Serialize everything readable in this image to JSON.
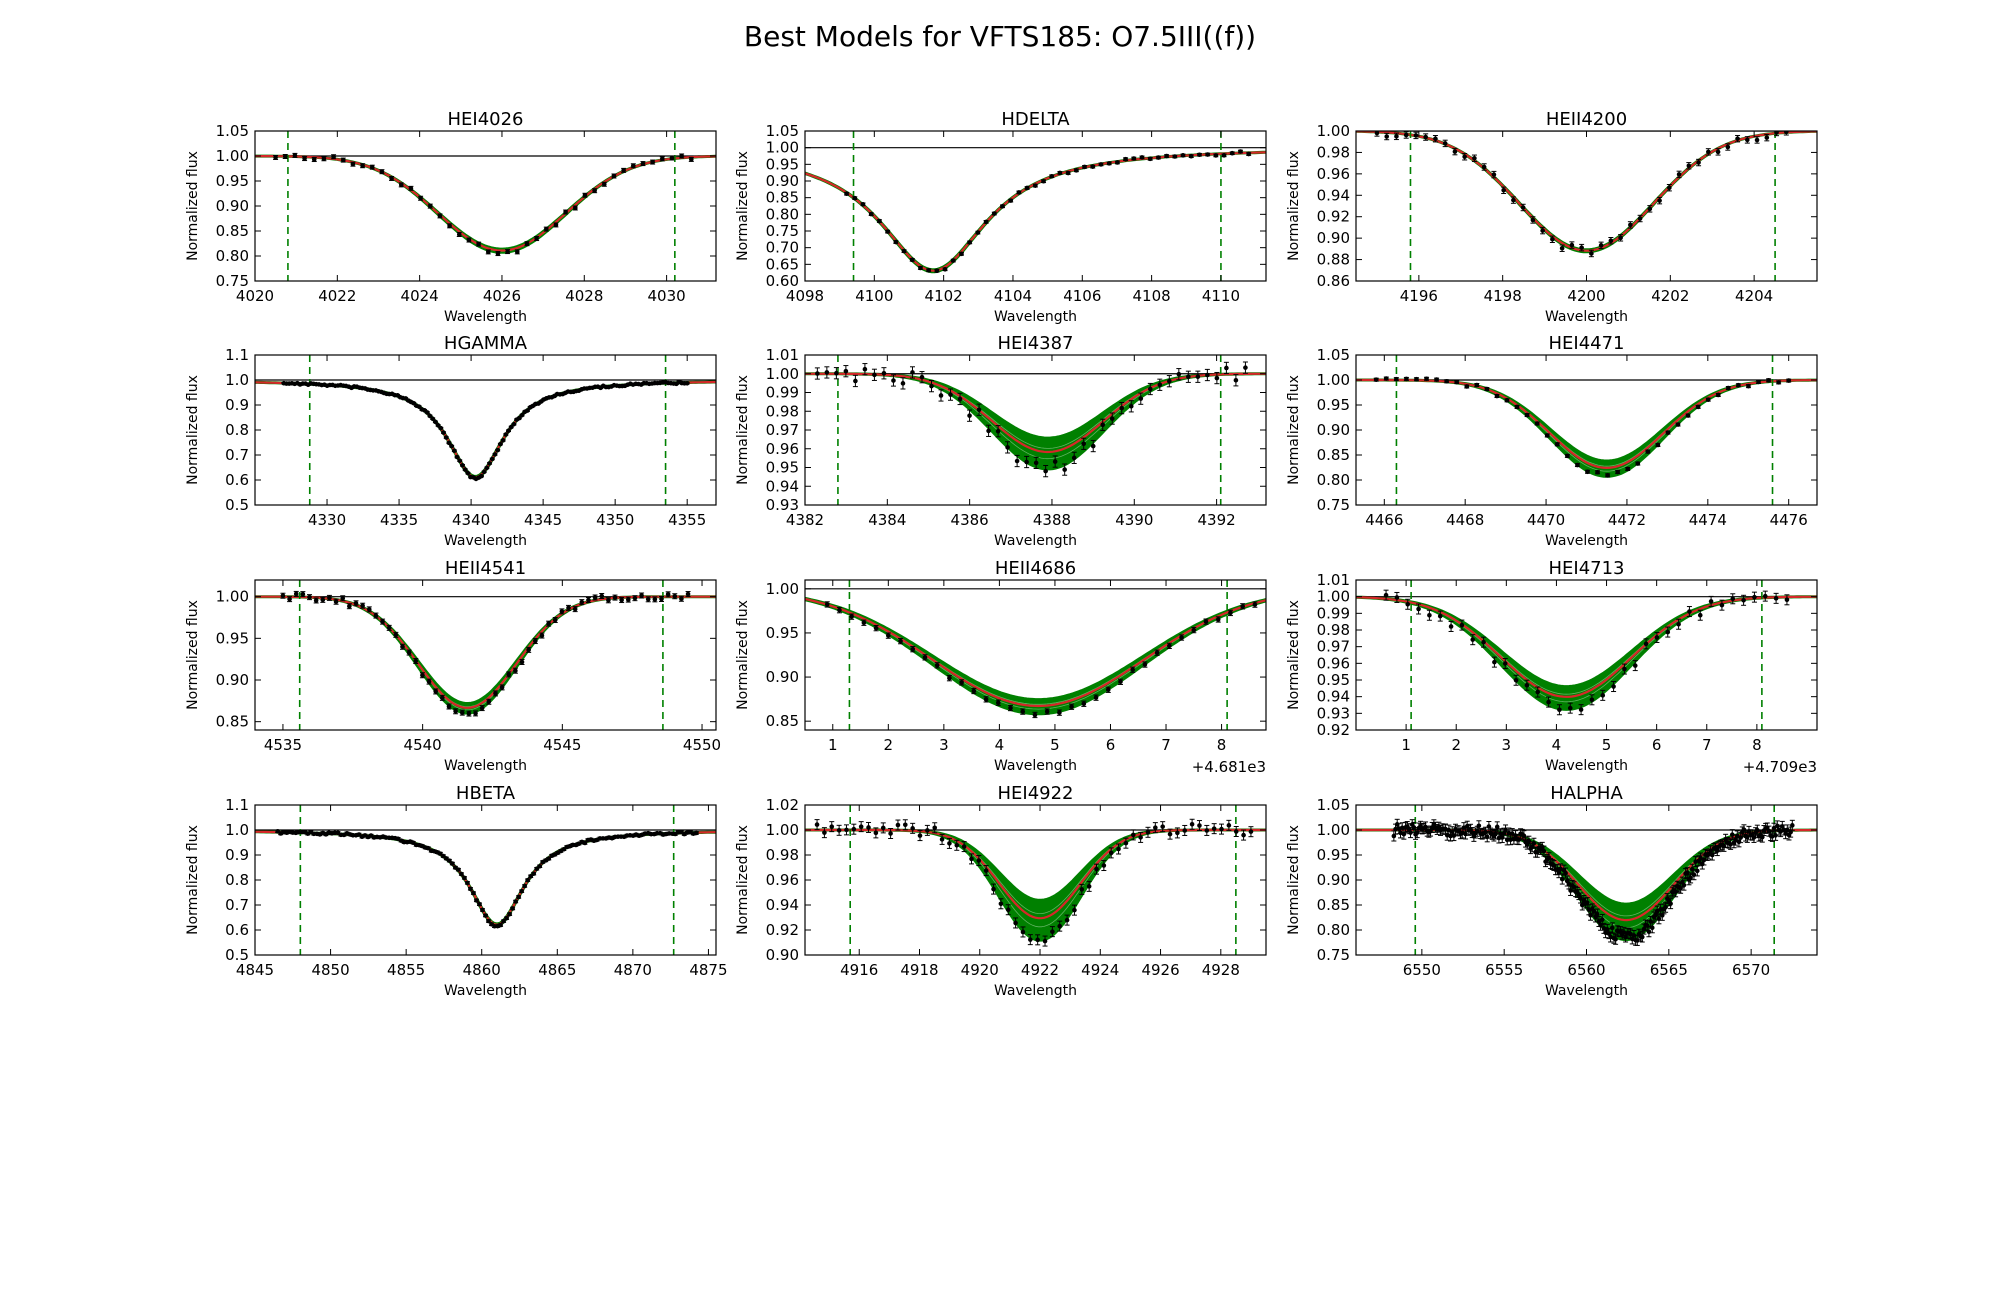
{
  "figure": {
    "title": "Best Models for VFTS185: O7.5III((f))"
  },
  "colors": {
    "data": "#000000",
    "best_model": "#d62728",
    "model_range": "#008000",
    "window": "#008000",
    "continuum": "#000000"
  },
  "chart_data": [
    {
      "type": "line",
      "title": "HEI4026",
      "xlabel": "Wavelength",
      "ylabel": "Normalized flux",
      "xlim": [
        4020,
        4031.2
      ],
      "ylim": [
        0.75,
        1.05
      ],
      "xticks": [
        4020,
        4022,
        4024,
        4026,
        4028,
        4030
      ],
      "xtick_labels": [
        "4020",
        "4022",
        "4024",
        "4026",
        "4028",
        "4030"
      ],
      "yticks": [
        0.75,
        0.8,
        0.85,
        0.9,
        0.95,
        1.0,
        1.05
      ],
      "ytick_labels": [
        "0.75",
        "0.80",
        "0.85",
        "0.90",
        "0.95",
        "1.00",
        "1.05"
      ],
      "offset_label": "",
      "window": [
        4020.8,
        4030.2
      ],
      "line": {
        "center": 4026.0,
        "depth": 0.19,
        "width": 1.55,
        "shape": "gauss",
        "spread": 0.02
      },
      "observed": {
        "x_start": 4020.5,
        "x_end": 4030.6,
        "n": 44,
        "jitter": 0.005,
        "err": 0.004
      }
    },
    {
      "type": "line",
      "title": "HDELTA",
      "xlabel": "Wavelength",
      "ylabel": "Normalized flux",
      "xlim": [
        4098,
        4111.3
      ],
      "ylim": [
        0.6,
        1.05
      ],
      "xticks": [
        4098,
        4100,
        4102,
        4104,
        4106,
        4108,
        4110
      ],
      "xtick_labels": [
        "4098",
        "4100",
        "4102",
        "4104",
        "4106",
        "4108",
        "4110"
      ],
      "yticks": [
        0.6,
        0.65,
        0.7,
        0.75,
        0.8,
        0.85,
        0.9,
        0.95,
        1.0,
        1.05
      ],
      "ytick_labels": [
        "0.60",
        "0.65",
        "0.70",
        "0.75",
        "0.80",
        "0.85",
        "0.90",
        "0.95",
        "1.00",
        "1.05"
      ],
      "offset_label": "",
      "window": [
        4099.4,
        4110.0
      ],
      "line": {
        "center": 4101.7,
        "depth": 0.37,
        "width": 1.9,
        "shape": "lorentz",
        "spread": 0.01
      },
      "observed": {
        "x_start": 4099.2,
        "x_end": 4110.8,
        "n": 50,
        "jitter": 0.005,
        "err": 0.004
      }
    },
    {
      "type": "line",
      "title": "HEII4200",
      "xlabel": "Wavelength",
      "ylabel": "Normalized flux",
      "xlim": [
        4194.5,
        4205.5
      ],
      "ylim": [
        0.86,
        1.0
      ],
      "xticks": [
        4196,
        4198,
        4200,
        4202,
        4204
      ],
      "xtick_labels": [
        "4196",
        "4198",
        "4200",
        "4202",
        "4204"
      ],
      "yticks": [
        0.86,
        0.88,
        0.9,
        0.92,
        0.94,
        0.96,
        0.98,
        1.0
      ],
      "ytick_labels": [
        "0.86",
        "0.88",
        "0.90",
        "0.92",
        "0.94",
        "0.96",
        "0.98",
        "1.00"
      ],
      "offset_label": "",
      "window": [
        4195.8,
        4204.5
      ],
      "line": {
        "center": 4200.0,
        "depth": 0.112,
        "width": 1.6,
        "shape": "gauss",
        "spread": 0.01
      },
      "observed": {
        "x_start": 4195.0,
        "x_end": 4205.0,
        "n": 44,
        "jitter": 0.004,
        "err": 0.003
      }
    },
    {
      "type": "line",
      "title": "HGAMMA",
      "xlabel": "Wavelength",
      "ylabel": "Normalized flux",
      "xlim": [
        4325,
        4357
      ],
      "ylim": [
        0.5,
        1.1
      ],
      "xticks": [
        4330,
        4335,
        4340,
        4345,
        4350,
        4355
      ],
      "xtick_labels": [
        "4330",
        "4335",
        "4340",
        "4345",
        "4350",
        "4355"
      ],
      "yticks": [
        0.5,
        0.6,
        0.7,
        0.8,
        0.9,
        1.0,
        1.1
      ],
      "ytick_labels": [
        "0.5",
        "0.6",
        "0.7",
        "0.8",
        "0.9",
        "1.0",
        "1.1"
      ],
      "offset_label": "",
      "window": [
        4328.8,
        4353.5
      ],
      "line": {
        "center": 4340.3,
        "depth": 0.39,
        "width": 2.4,
        "shape": "lorentz",
        "spread": 0.01
      },
      "observed": {
        "x_start": 4327.0,
        "x_end": 4355.0,
        "n": 150,
        "jitter": 0.004,
        "err": 0.003
      }
    },
    {
      "type": "line",
      "title": "HEI4387",
      "xlabel": "Wavelength",
      "ylabel": "Normalized flux",
      "xlim": [
        4382,
        4393.2
      ],
      "ylim": [
        0.93,
        1.01
      ],
      "xticks": [
        4382,
        4384,
        4386,
        4388,
        4390,
        4392
      ],
      "xtick_labels": [
        "4382",
        "4384",
        "4386",
        "4388",
        "4390",
        "4392"
      ],
      "yticks": [
        0.93,
        0.94,
        0.95,
        0.96,
        0.97,
        0.98,
        0.99,
        1.0,
        1.01
      ],
      "ytick_labels": [
        "0.93",
        "0.94",
        "0.95",
        "0.96",
        "0.97",
        "0.98",
        "0.99",
        "1.00",
        "1.01"
      ],
      "offset_label": "",
      "window": [
        4382.8,
        4392.1
      ],
      "line": {
        "center": 4387.9,
        "depth": 0.044,
        "width": 1.35,
        "shape": "gauss",
        "spread": 0.22
      },
      "observed": {
        "x_start": 4382.3,
        "x_end": 4392.7,
        "n": 46,
        "jitter": 0.004,
        "err": 0.003
      }
    },
    {
      "type": "line",
      "title": "HEI4471",
      "xlabel": "Wavelength",
      "ylabel": "Normalized flux",
      "xlim": [
        4465.3,
        4476.7
      ],
      "ylim": [
        0.75,
        1.05
      ],
      "xticks": [
        4466,
        4468,
        4470,
        4472,
        4474,
        4476
      ],
      "xtick_labels": [
        "4466",
        "4468",
        "4470",
        "4472",
        "4474",
        "4476"
      ],
      "yticks": [
        0.75,
        0.8,
        0.85,
        0.9,
        0.95,
        1.0,
        1.05
      ],
      "ytick_labels": [
        "0.75",
        "0.80",
        "0.85",
        "0.90",
        "0.95",
        "1.00",
        "1.05"
      ],
      "offset_label": "",
      "window": [
        4466.3,
        4475.6
      ],
      "line": {
        "center": 4471.5,
        "depth": 0.18,
        "width": 1.4,
        "shape": "gauss",
        "spread": 0.1
      },
      "observed": {
        "x_start": 4465.8,
        "x_end": 4476.0,
        "n": 42,
        "jitter": 0.004,
        "err": 0.003
      }
    },
    {
      "type": "line",
      "title": "HEII4541",
      "xlabel": "Wavelength",
      "ylabel": "Normalized flux",
      "xlim": [
        4534,
        4550.5
      ],
      "ylim": [
        0.84,
        1.02
      ],
      "xticks": [
        4535,
        4540,
        4545,
        4550
      ],
      "xtick_labels": [
        "4535",
        "4540",
        "4545",
        "4550"
      ],
      "yticks": [
        0.85,
        0.9,
        0.95,
        1.0
      ],
      "ytick_labels": [
        "0.85",
        "0.90",
        "0.95",
        "1.00"
      ],
      "offset_label": "",
      "window": [
        4535.6,
        4548.6
      ],
      "line": {
        "center": 4541.6,
        "depth": 0.135,
        "width": 1.75,
        "shape": "gauss",
        "spread": 0.05
      },
      "observed": {
        "x_start": 4535.0,
        "x_end": 4549.5,
        "n": 62,
        "jitter": 0.004,
        "err": 0.003
      }
    },
    {
      "type": "line",
      "title": "HEII4686",
      "xlabel": "Wavelength",
      "ylabel": "Normalized flux",
      "xlim": [
        0.5,
        8.8
      ],
      "ylim": [
        0.84,
        1.01
      ],
      "xticks": [
        1,
        2,
        3,
        4,
        5,
        6,
        7,
        8
      ],
      "xtick_labels": [
        "1",
        "2",
        "3",
        "4",
        "5",
        "6",
        "7",
        "8"
      ],
      "yticks": [
        0.85,
        0.9,
        0.95,
        1.0
      ],
      "ytick_labels": [
        "0.85",
        "0.90",
        "0.95",
        "1.00"
      ],
      "offset_label": "+4.681e3",
      "window": [
        1.3,
        8.1
      ],
      "line": {
        "center": 4.7,
        "depth": 0.135,
        "width": 1.9,
        "shape": "gauss",
        "spread": 0.07
      },
      "observed": {
        "x_start": 0.9,
        "x_end": 8.6,
        "n": 36,
        "jitter": 0.003,
        "err": 0.003
      }
    },
    {
      "type": "line",
      "title": "HEI4713",
      "xlabel": "Wavelength",
      "ylabel": "Normalized flux",
      "xlim": [
        0.0,
        9.2
      ],
      "ylim": [
        0.92,
        1.01
      ],
      "xticks": [
        1,
        2,
        3,
        4,
        5,
        6,
        7,
        8
      ],
      "xtick_labels": [
        "1",
        "2",
        "3",
        "4",
        "5",
        "6",
        "7",
        "8"
      ],
      "yticks": [
        0.92,
        0.93,
        0.94,
        0.95,
        0.96,
        0.97,
        0.98,
        0.99,
        1.0,
        1.01
      ],
      "ytick_labels": [
        "0.92",
        "0.93",
        "0.94",
        "0.95",
        "0.96",
        "0.97",
        "0.98",
        "0.99",
        "1.00",
        "1.01"
      ],
      "offset_label": "+4.709e3",
      "window": [
        1.1,
        8.1
      ],
      "line": {
        "center": 4.2,
        "depth": 0.062,
        "width": 1.3,
        "shape": "gauss",
        "spread": 0.13
      },
      "observed": {
        "x_start": 0.6,
        "x_end": 8.6,
        "n": 38,
        "jitter": 0.004,
        "err": 0.003
      }
    },
    {
      "type": "line",
      "title": "HBETA",
      "xlabel": "Wavelength",
      "ylabel": "Normalized flux",
      "xlim": [
        4845,
        4875.5
      ],
      "ylim": [
        0.5,
        1.1
      ],
      "xticks": [
        4845,
        4850,
        4855,
        4860,
        4865,
        4870,
        4875
      ],
      "xtick_labels": [
        "4845",
        "4850",
        "4855",
        "4860",
        "4865",
        "4870",
        "4875"
      ],
      "yticks": [
        0.5,
        0.6,
        0.7,
        0.8,
        0.9,
        1.0,
        1.1
      ],
      "ytick_labels": [
        "0.5",
        "0.6",
        "0.7",
        "0.8",
        "0.9",
        "1.0",
        "1.1"
      ],
      "offset_label": "",
      "window": [
        4848.0,
        4872.7
      ],
      "line": {
        "center": 4861.0,
        "depth": 0.38,
        "width": 2.2,
        "shape": "lorentz",
        "spread": 0.01
      },
      "observed": {
        "x_start": 4846.5,
        "x_end": 4874.2,
        "n": 140,
        "jitter": 0.005,
        "err": 0.005
      }
    },
    {
      "type": "line",
      "title": "HEI4922",
      "xlabel": "Wavelength",
      "ylabel": "Normalized flux",
      "xlim": [
        4914.2,
        4929.5
      ],
      "ylim": [
        0.9,
        1.02
      ],
      "xticks": [
        4916,
        4918,
        4920,
        4922,
        4924,
        4926,
        4928
      ],
      "xtick_labels": [
        "4916",
        "4918",
        "4920",
        "4922",
        "4924",
        "4926",
        "4928"
      ],
      "yticks": [
        0.9,
        0.92,
        0.94,
        0.96,
        0.98,
        1.0,
        1.02
      ],
      "ytick_labels": [
        "0.90",
        "0.92",
        "0.94",
        "0.96",
        "0.98",
        "1.00",
        "1.02"
      ],
      "offset_label": "",
      "window": [
        4915.7,
        4928.5
      ],
      "line": {
        "center": 4922.0,
        "depth": 0.075,
        "width": 1.35,
        "shape": "gauss",
        "spread": 0.25
      },
      "observed": {
        "x_start": 4914.6,
        "x_end": 4929.0,
        "n": 60,
        "jitter": 0.005,
        "err": 0.004
      }
    },
    {
      "type": "line",
      "title": "HALPHA",
      "xlabel": "Wavelength",
      "ylabel": "Normalized flux",
      "xlim": [
        6546,
        6574
      ],
      "ylim": [
        0.75,
        1.05
      ],
      "xticks": [
        6550,
        6555,
        6560,
        6565,
        6570
      ],
      "xtick_labels": [
        "6550",
        "6555",
        "6560",
        "6565",
        "6570"
      ],
      "yticks": [
        0.75,
        0.8,
        0.85,
        0.9,
        0.95,
        1.0,
        1.05
      ],
      "ytick_labels": [
        "0.75",
        "0.80",
        "0.85",
        "0.90",
        "0.95",
        "1.00",
        "1.05"
      ],
      "offset_label": "",
      "window": [
        6549.6,
        6571.4
      ],
      "line": {
        "center": 6562.4,
        "depth": 0.19,
        "width": 2.9,
        "shape": "gauss",
        "spread": 0.22
      },
      "observed": {
        "x_start": 6548.3,
        "x_end": 6572.5,
        "n": 240,
        "jitter": 0.012,
        "err": 0.01
      }
    }
  ]
}
